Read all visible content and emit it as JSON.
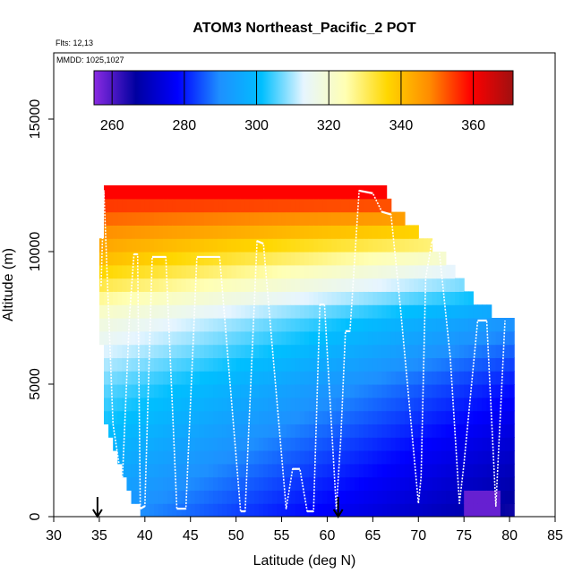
{
  "chart_data": {
    "type": "heatmap",
    "title": "ATOM3 Northeast_Pacific_2 POT",
    "flights_note": "Flts: 12,13",
    "dates_note": "MMDD: 1025,1027",
    "xlabel": "Latitude (deg N)",
    "ylabel": "Altitude (m)",
    "xlim": [
      30,
      85
    ],
    "ylim": [
      0,
      17500
    ],
    "x_ticks": [
      30,
      35,
      40,
      45,
      50,
      55,
      60,
      65,
      70,
      75,
      80,
      85
    ],
    "y_ticks": [
      0,
      5000,
      10000,
      15000
    ],
    "colorbar": {
      "range": [
        255,
        371
      ],
      "ticks": [
        260,
        280,
        300,
        320,
        340,
        360
      ],
      "colors": [
        "#8a2be2",
        "#0000a0",
        "#0000ff",
        "#1e90ff",
        "#00bfff",
        "#e6f5ff",
        "#ffffb3",
        "#ffd700",
        "#ff8c00",
        "#ff0000",
        "#a01010"
      ]
    },
    "bins": {
      "lat_step": 0.5,
      "alt_step": 500,
      "extent": [
        {
          "lat": 35.0,
          "alt_min": 6500,
          "alt_max": 10500
        },
        {
          "lat": 35.5,
          "alt_min": 3500,
          "alt_max": 12500
        },
        {
          "lat": 36.0,
          "alt_min": 3000,
          "alt_max": 12500
        },
        {
          "lat": 38.0,
          "alt_min": 1000,
          "alt_max": 12500
        },
        {
          "lat": 40.0,
          "alt_min": 0,
          "alt_max": 12500
        },
        {
          "lat": 66.0,
          "alt_min": 0,
          "alt_max": 12500
        },
        {
          "lat": 67.0,
          "alt_min": 0,
          "alt_max": 11500
        },
        {
          "lat": 70.0,
          "alt_min": 0,
          "alt_max": 10500
        },
        {
          "lat": 73.0,
          "alt_min": 0,
          "alt_max": 9500
        },
        {
          "lat": 76.0,
          "alt_min": 0,
          "alt_max": 8000
        },
        {
          "lat": 78.0,
          "alt_min": 0,
          "alt_max": 7500
        },
        {
          "lat": 80.5,
          "alt_min": 500,
          "alt_max": 7500
        }
      ],
      "theta_profile": [
        {
          "alt": 0,
          "pot": 283
        },
        {
          "alt": 2500,
          "pot": 290
        },
        {
          "alt": 5000,
          "pot": 298
        },
        {
          "alt": 7500,
          "pot": 310
        },
        {
          "alt": 9000,
          "pot": 325
        },
        {
          "alt": 10500,
          "pot": 340
        },
        {
          "alt": 12500,
          "pot": 362
        }
      ],
      "lat_cooling_per_deg": 0.6,
      "cold_anomaly": {
        "lat_min": 75,
        "lat_max": 79,
        "alt_max": 1000,
        "pot": 258
      }
    },
    "flight_track": {
      "points": [
        [
          35.2,
          8700
        ],
        [
          35.5,
          12300
        ],
        [
          36.5,
          3500
        ],
        [
          37.5,
          1200
        ],
        [
          38.3,
          7500
        ],
        [
          38.8,
          9900
        ],
        [
          39.2,
          9900
        ],
        [
          39.5,
          300
        ],
        [
          40.0,
          400
        ],
        [
          40.8,
          9800
        ],
        [
          42.3,
          9800
        ],
        [
          43.5,
          300
        ],
        [
          44.5,
          300
        ],
        [
          45.7,
          9800
        ],
        [
          48.2,
          9800
        ],
        [
          50.5,
          200
        ],
        [
          51.0,
          200
        ],
        [
          52.3,
          10400
        ],
        [
          53.0,
          10300
        ],
        [
          55.5,
          300
        ],
        [
          56.2,
          1800
        ],
        [
          57.0,
          1800
        ],
        [
          57.8,
          200
        ],
        [
          58.5,
          200
        ],
        [
          59.2,
          8000
        ],
        [
          59.7,
          8000
        ],
        [
          61.0,
          300
        ],
        [
          61.5,
          3000
        ],
        [
          62.0,
          7000
        ],
        [
          62.5,
          7000
        ],
        [
          63.5,
          12300
        ],
        [
          65.0,
          12200
        ],
        [
          66.0,
          11500
        ],
        [
          67.0,
          11400
        ],
        [
          68.0,
          8000
        ],
        [
          70.0,
          500
        ],
        [
          70.3,
          1500
        ],
        [
          70.8,
          9000
        ],
        [
          71.5,
          10400
        ],
        [
          72.2,
          10300
        ],
        [
          73.5,
          6000
        ],
        [
          74.5,
          500
        ],
        [
          75.0,
          2000
        ],
        [
          76.5,
          7400
        ],
        [
          77.5,
          7400
        ],
        [
          78.5,
          400
        ],
        [
          79.5,
          7400
        ]
      ]
    },
    "markers": [
      {
        "lat": 34.8,
        "symbol": "down-arrow"
      },
      {
        "lat": 61.2,
        "symbol": "down-arrow"
      }
    ],
    "grid": false,
    "legend": "colorbar-top"
  }
}
